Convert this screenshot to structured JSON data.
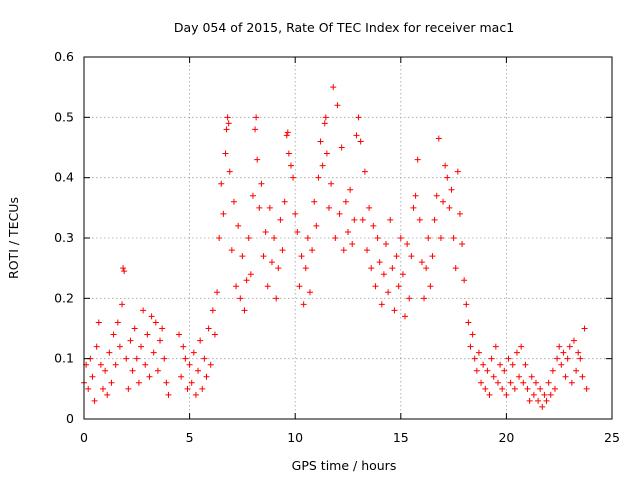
{
  "chart_data": {
    "type": "scatter",
    "title": "Day 054 of 2015, Rate Of TEC Index for receiver mac1",
    "xlabel": "GPS time / hours",
    "ylabel": "ROTI / TECUs",
    "xlim": [
      0,
      25
    ],
    "ylim": [
      0,
      0.6
    ],
    "xticks": [
      0,
      5,
      10,
      15,
      20,
      25
    ],
    "yticks": [
      0,
      0.1,
      0.2,
      0.3,
      0.4,
      0.5,
      0.6
    ],
    "xtick_labels": [
      "0",
      "5",
      "10",
      "15",
      "20",
      "25"
    ],
    "ytick_labels": [
      "0",
      "0.1",
      "0.2",
      "0.3",
      "0.4",
      "0.5",
      "0.6"
    ],
    "grid": true,
    "marker": "+",
    "color": "#ff0000",
    "series": [
      {
        "points": [
          [
            0.0,
            0.06
          ],
          [
            0.1,
            0.09
          ],
          [
            0.2,
            0.05
          ],
          [
            0.3,
            0.1
          ],
          [
            0.4,
            0.07
          ],
          [
            0.5,
            0.03
          ],
          [
            0.6,
            0.12
          ],
          [
            0.7,
            0.16
          ],
          [
            0.8,
            0.09
          ],
          [
            0.9,
            0.05
          ],
          [
            1.0,
            0.08
          ],
          [
            1.1,
            0.04
          ],
          [
            1.2,
            0.11
          ],
          [
            1.3,
            0.06
          ],
          [
            1.4,
            0.14
          ],
          [
            1.5,
            0.09
          ],
          [
            1.6,
            0.16
          ],
          [
            1.7,
            0.12
          ],
          [
            1.8,
            0.19
          ],
          [
            1.85,
            0.25
          ],
          [
            1.9,
            0.245
          ],
          [
            2.0,
            0.1
          ],
          [
            2.1,
            0.05
          ],
          [
            2.2,
            0.13
          ],
          [
            2.3,
            0.08
          ],
          [
            2.4,
            0.15
          ],
          [
            2.5,
            0.1
          ],
          [
            2.6,
            0.06
          ],
          [
            2.7,
            0.12
          ],
          [
            2.8,
            0.18
          ],
          [
            2.9,
            0.09
          ],
          [
            3.0,
            0.14
          ],
          [
            3.1,
            0.07
          ],
          [
            3.2,
            0.17
          ],
          [
            3.3,
            0.11
          ],
          [
            3.4,
            0.16
          ],
          [
            3.5,
            0.08
          ],
          [
            3.6,
            0.13
          ],
          [
            3.7,
            0.15
          ],
          [
            3.8,
            0.1
          ],
          [
            3.9,
            0.06
          ],
          [
            4.0,
            0.04
          ],
          [
            4.5,
            0.14
          ],
          [
            4.6,
            0.07
          ],
          [
            4.7,
            0.12
          ],
          [
            4.8,
            0.1
          ],
          [
            4.9,
            0.05
          ],
          [
            5.0,
            0.09
          ],
          [
            5.1,
            0.06
          ],
          [
            5.2,
            0.11
          ],
          [
            5.3,
            0.04
          ],
          [
            5.4,
            0.08
          ],
          [
            5.5,
            0.13
          ],
          [
            5.6,
            0.05
          ],
          [
            5.7,
            0.1
          ],
          [
            5.8,
            0.07
          ],
          [
            5.9,
            0.15
          ],
          [
            6.0,
            0.09
          ],
          [
            6.1,
            0.18
          ],
          [
            6.2,
            0.14
          ],
          [
            6.3,
            0.21
          ],
          [
            6.4,
            0.3
          ],
          [
            6.5,
            0.39
          ],
          [
            6.6,
            0.34
          ],
          [
            6.7,
            0.44
          ],
          [
            6.75,
            0.48
          ],
          [
            6.8,
            0.5
          ],
          [
            6.85,
            0.49
          ],
          [
            6.9,
            0.41
          ],
          [
            7.0,
            0.28
          ],
          [
            7.1,
            0.36
          ],
          [
            7.2,
            0.22
          ],
          [
            7.3,
            0.32
          ],
          [
            7.4,
            0.2
          ],
          [
            7.5,
            0.27
          ],
          [
            7.6,
            0.18
          ],
          [
            7.7,
            0.23
          ],
          [
            7.8,
            0.3
          ],
          [
            7.9,
            0.24
          ],
          [
            8.0,
            0.37
          ],
          [
            8.1,
            0.48
          ],
          [
            8.15,
            0.5
          ],
          [
            8.2,
            0.43
          ],
          [
            8.3,
            0.35
          ],
          [
            8.4,
            0.39
          ],
          [
            8.5,
            0.27
          ],
          [
            8.6,
            0.31
          ],
          [
            8.7,
            0.22
          ],
          [
            8.8,
            0.35
          ],
          [
            8.9,
            0.26
          ],
          [
            9.0,
            0.3
          ],
          [
            9.1,
            0.2
          ],
          [
            9.2,
            0.25
          ],
          [
            9.3,
            0.33
          ],
          [
            9.4,
            0.28
          ],
          [
            9.5,
            0.36
          ],
          [
            9.6,
            0.47
          ],
          [
            9.65,
            0.475
          ],
          [
            9.7,
            0.44
          ],
          [
            9.8,
            0.42
          ],
          [
            9.9,
            0.4
          ],
          [
            10.0,
            0.34
          ],
          [
            10.1,
            0.31
          ],
          [
            10.2,
            0.22
          ],
          [
            10.3,
            0.27
          ],
          [
            10.4,
            0.19
          ],
          [
            10.5,
            0.25
          ],
          [
            10.6,
            0.3
          ],
          [
            10.7,
            0.21
          ],
          [
            10.8,
            0.28
          ],
          [
            10.9,
            0.36
          ],
          [
            11.0,
            0.32
          ],
          [
            11.1,
            0.4
          ],
          [
            11.2,
            0.46
          ],
          [
            11.3,
            0.42
          ],
          [
            11.4,
            0.49
          ],
          [
            11.45,
            0.5
          ],
          [
            11.5,
            0.44
          ],
          [
            11.6,
            0.35
          ],
          [
            11.7,
            0.39
          ],
          [
            11.8,
            0.55
          ],
          [
            11.9,
            0.3
          ],
          [
            12.0,
            0.52
          ],
          [
            12.1,
            0.34
          ],
          [
            12.2,
            0.45
          ],
          [
            12.3,
            0.28
          ],
          [
            12.4,
            0.36
          ],
          [
            12.5,
            0.31
          ],
          [
            12.6,
            0.38
          ],
          [
            12.7,
            0.29
          ],
          [
            12.8,
            0.33
          ],
          [
            12.9,
            0.47
          ],
          [
            13.0,
            0.5
          ],
          [
            13.1,
            0.46
          ],
          [
            13.2,
            0.33
          ],
          [
            13.3,
            0.41
          ],
          [
            13.4,
            0.28
          ],
          [
            13.5,
            0.35
          ],
          [
            13.6,
            0.25
          ],
          [
            13.7,
            0.32
          ],
          [
            13.8,
            0.22
          ],
          [
            13.9,
            0.3
          ],
          [
            14.0,
            0.26
          ],
          [
            14.1,
            0.19
          ],
          [
            14.2,
            0.24
          ],
          [
            14.3,
            0.29
          ],
          [
            14.4,
            0.21
          ],
          [
            14.5,
            0.33
          ],
          [
            14.6,
            0.25
          ],
          [
            14.7,
            0.18
          ],
          [
            14.8,
            0.27
          ],
          [
            14.9,
            0.22
          ],
          [
            15.0,
            0.3
          ],
          [
            15.1,
            0.24
          ],
          [
            15.2,
            0.17
          ],
          [
            15.3,
            0.29
          ],
          [
            15.4,
            0.2
          ],
          [
            15.5,
            0.27
          ],
          [
            15.6,
            0.35
          ],
          [
            15.7,
            0.37
          ],
          [
            15.8,
            0.43
          ],
          [
            15.9,
            0.33
          ],
          [
            16.0,
            0.26
          ],
          [
            16.1,
            0.2
          ],
          [
            16.2,
            0.25
          ],
          [
            16.3,
            0.3
          ],
          [
            16.4,
            0.22
          ],
          [
            16.5,
            0.27
          ],
          [
            16.6,
            0.33
          ],
          [
            16.7,
            0.37
          ],
          [
            16.8,
            0.465
          ],
          [
            16.9,
            0.3
          ],
          [
            17.0,
            0.36
          ],
          [
            17.1,
            0.42
          ],
          [
            17.2,
            0.4
          ],
          [
            17.3,
            0.35
          ],
          [
            17.4,
            0.38
          ],
          [
            17.5,
            0.3
          ],
          [
            17.6,
            0.25
          ],
          [
            17.7,
            0.41
          ],
          [
            17.8,
            0.34
          ],
          [
            17.9,
            0.29
          ],
          [
            18.0,
            0.23
          ],
          [
            18.1,
            0.19
          ],
          [
            18.2,
            0.16
          ],
          [
            18.3,
            0.12
          ],
          [
            18.4,
            0.14
          ],
          [
            18.5,
            0.1
          ],
          [
            18.6,
            0.08
          ],
          [
            18.7,
            0.11
          ],
          [
            18.8,
            0.06
          ],
          [
            18.9,
            0.09
          ],
          [
            19.0,
            0.05
          ],
          [
            19.1,
            0.08
          ],
          [
            19.2,
            0.04
          ],
          [
            19.3,
            0.1
          ],
          [
            19.4,
            0.07
          ],
          [
            19.5,
            0.12
          ],
          [
            19.6,
            0.06
          ],
          [
            19.7,
            0.09
          ],
          [
            19.8,
            0.05
          ],
          [
            19.9,
            0.08
          ],
          [
            20.0,
            0.04
          ],
          [
            20.1,
            0.1
          ],
          [
            20.2,
            0.06
          ],
          [
            20.3,
            0.09
          ],
          [
            20.4,
            0.05
          ],
          [
            20.5,
            0.11
          ],
          [
            20.6,
            0.07
          ],
          [
            20.7,
            0.12
          ],
          [
            20.8,
            0.06
          ],
          [
            20.9,
            0.09
          ],
          [
            21.0,
            0.05
          ],
          [
            21.1,
            0.03
          ],
          [
            21.2,
            0.07
          ],
          [
            21.3,
            0.04
          ],
          [
            21.4,
            0.06
          ],
          [
            21.5,
            0.03
          ],
          [
            21.6,
            0.05
          ],
          [
            21.7,
            0.02
          ],
          [
            21.8,
            0.04
          ],
          [
            21.9,
            0.03
          ],
          [
            22.0,
            0.06
          ],
          [
            22.1,
            0.04
          ],
          [
            22.2,
            0.08
          ],
          [
            22.3,
            0.05
          ],
          [
            22.4,
            0.1
          ],
          [
            22.5,
            0.12
          ],
          [
            22.6,
            0.09
          ],
          [
            22.7,
            0.11
          ],
          [
            22.8,
            0.07
          ],
          [
            22.9,
            0.1
          ],
          [
            23.0,
            0.12
          ],
          [
            23.1,
            0.06
          ],
          [
            23.2,
            0.13
          ],
          [
            23.3,
            0.08
          ],
          [
            23.4,
            0.11
          ],
          [
            23.5,
            0.1
          ],
          [
            23.6,
            0.07
          ],
          [
            23.7,
            0.15
          ],
          [
            23.8,
            0.05
          ]
        ]
      }
    ]
  }
}
